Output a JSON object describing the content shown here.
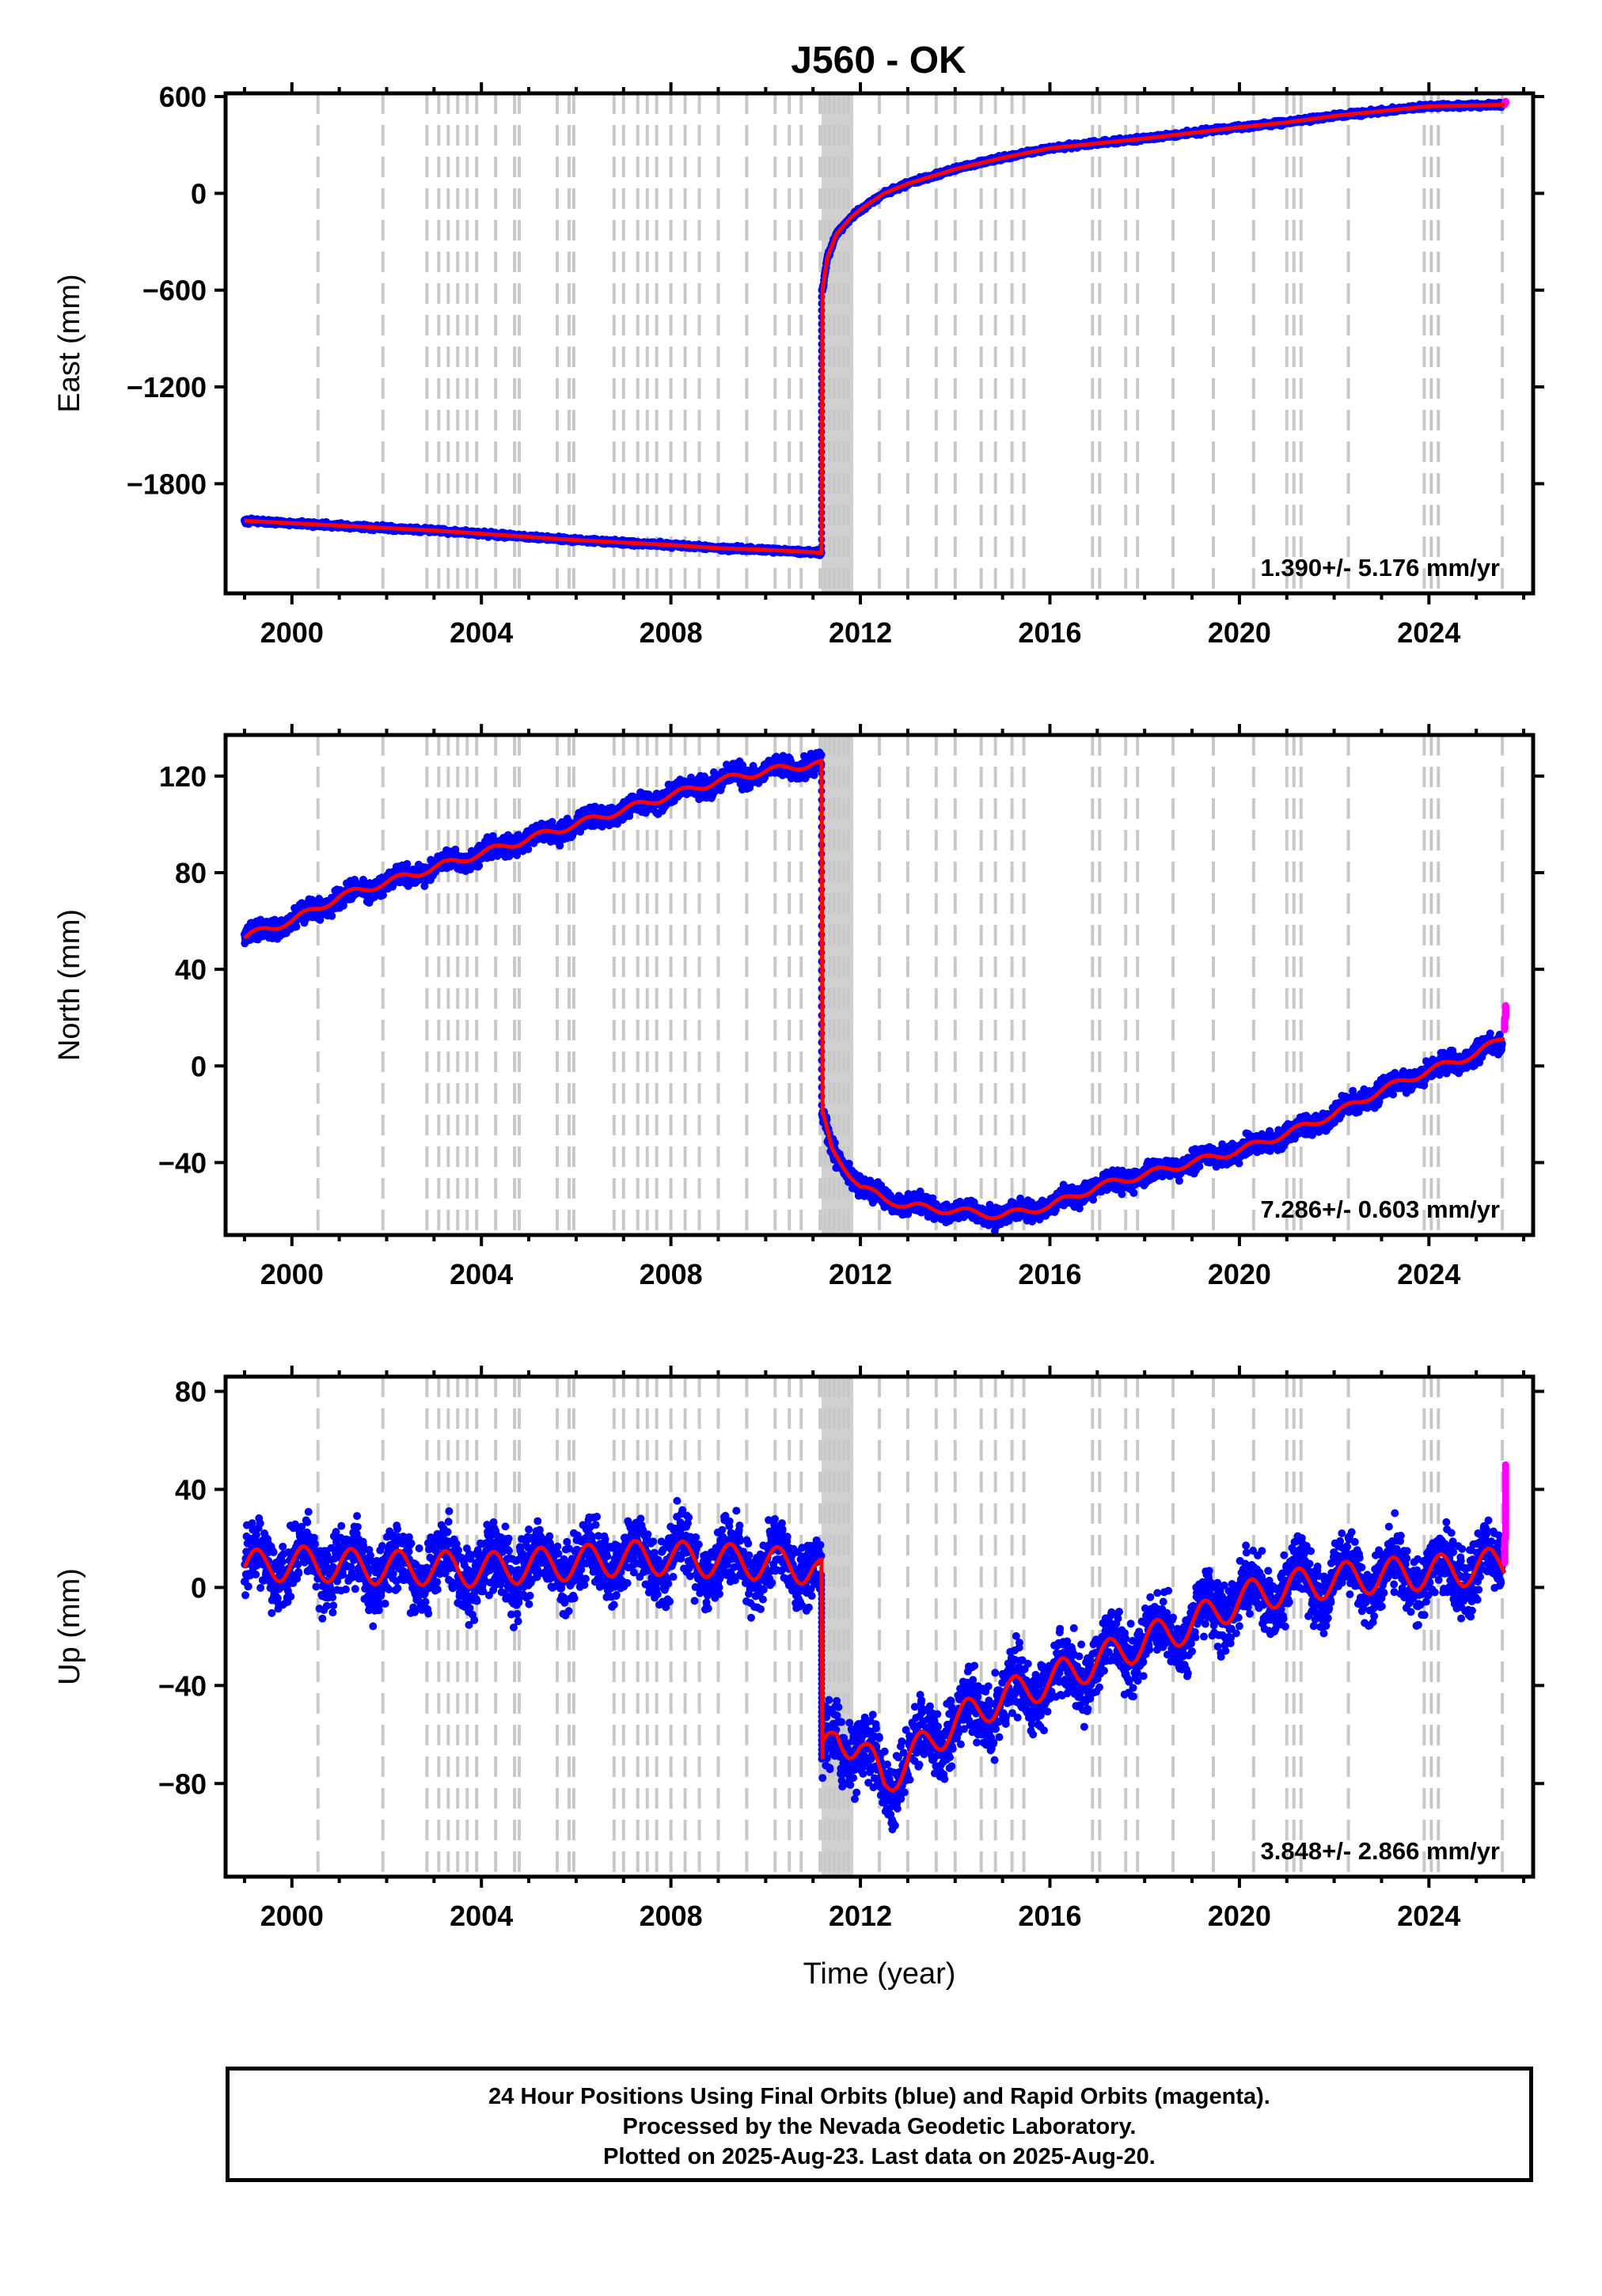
{
  "chart_data": [
    {
      "type": "scatter",
      "title": "J560 - OK",
      "ylabel": "East (mm)",
      "xlabel": "",
      "xlim": [
        1998.6,
        2026.2
      ],
      "ylim": [
        -2480,
        620
      ],
      "yticks": [
        -1800,
        -1200,
        -600,
        0,
        600
      ],
      "ytick_labels": [
        "−1800",
        "−1200",
        "−600",
        "0",
        "600"
      ],
      "xticks": [
        2000,
        2004,
        2008,
        2012,
        2016,
        2020,
        2024
      ],
      "xtick_labels": [
        "2000",
        "2004",
        "2008",
        "2012",
        "2016",
        "2020",
        "2024"
      ],
      "rate_text": "1.390+/- 5.176 mm/yr",
      "series": [
        {
          "color": "#0000ff",
          "x": [
            1999.0,
            2000.0,
            2001.0,
            2002.0,
            2003.0,
            2004.0,
            2005.0,
            2006.0,
            2007.0,
            2008.0,
            2009.0,
            2010.0,
            2011.0,
            2011.18,
            2011.2,
            2011.3,
            2011.5,
            2011.8,
            2012.0,
            2012.5,
            2013.0,
            2014.0,
            2015.0,
            2016.0,
            2017.0,
            2018.0,
            2019.0,
            2020.0,
            2021.0,
            2022.0,
            2023.0,
            2024.0,
            2025.0,
            2025.55
          ],
          "y": [
            -2030,
            -2045,
            -2060,
            -2075,
            -2090,
            -2110,
            -2130,
            -2150,
            -2165,
            -2180,
            -2200,
            -2210,
            -2225,
            -2230,
            -600,
            -400,
            -250,
            -150,
            -100,
            0,
            60,
            150,
            220,
            280,
            310,
            340,
            375,
            410,
            440,
            480,
            510,
            540,
            545,
            550
          ]
        },
        {
          "color": "#ff00ff",
          "x": [
            2025.6,
            2025.62,
            2025.65
          ],
          "y": [
            550,
            560,
            570
          ]
        }
      ],
      "model": {
        "color": "#ff0000",
        "x": [
          1999.0,
          2000.0,
          2001.0,
          2002.0,
          2003.0,
          2004.0,
          2005.0,
          2006.0,
          2007.0,
          2008.0,
          2009.0,
          2010.0,
          2011.0,
          2011.18,
          2011.2,
          2011.3,
          2011.5,
          2011.8,
          2012.0,
          2012.5,
          2013.0,
          2014.0,
          2015.0,
          2016.0,
          2017.0,
          2018.0,
          2019.0,
          2020.0,
          2021.0,
          2022.0,
          2023.0,
          2024.0,
          2025.0,
          2025.6
        ],
        "y": [
          -2030,
          -2045,
          -2060,
          -2075,
          -2090,
          -2110,
          -2130,
          -2150,
          -2165,
          -2180,
          -2200,
          -2210,
          -2225,
          -2230,
          -600,
          -400,
          -250,
          -150,
          -100,
          0,
          60,
          150,
          220,
          280,
          310,
          340,
          375,
          410,
          440,
          480,
          510,
          540,
          545,
          550
        ]
      }
    },
    {
      "type": "scatter",
      "title": "",
      "ylabel": "North (mm)",
      "xlabel": "",
      "xlim": [
        1998.6,
        2026.2
      ],
      "ylim": [
        -70,
        137
      ],
      "yticks": [
        -40,
        0,
        40,
        80,
        120
      ],
      "ytick_labels": [
        "−40",
        "0",
        "40",
        "80",
        "120"
      ],
      "xticks": [
        2000,
        2004,
        2008,
        2012,
        2016,
        2020,
        2024
      ],
      "xtick_labels": [
        "2000",
        "2004",
        "2008",
        "2012",
        "2016",
        "2020",
        "2024"
      ],
      "rate_text": "7.286+/- 0.603 mm/yr",
      "series": [
        {
          "color": "#0000ff",
          "x": [
            1999.0,
            1999.5,
            2000.0,
            2000.5,
            2001.0,
            2002.0,
            2003.0,
            2004.0,
            2005.0,
            2006.0,
            2007.0,
            2008.0,
            2009.0,
            2010.0,
            2011.0,
            2011.18,
            2011.2,
            2011.4,
            2011.8,
            2012.0,
            2012.5,
            2013.0,
            2014.0,
            2015.0,
            2016.0,
            2017.0,
            2018.0,
            2019.0,
            2020.0,
            2021.0,
            2022.0,
            2023.0,
            2024.0,
            2025.0,
            2025.55
          ],
          "y": [
            53,
            57,
            60,
            65,
            70,
            76,
            82,
            88,
            94,
            100,
            106,
            112,
            118,
            122,
            125,
            125,
            -20,
            -35,
            -45,
            -50,
            -55,
            -58,
            -60,
            -62,
            -58,
            -50,
            -45,
            -40,
            -35,
            -28,
            -20,
            -10,
            -2,
            5,
            10
          ]
        },
        {
          "color": "#ff00ff",
          "x": [
            2025.6,
            2025.62,
            2025.65
          ],
          "y": [
            15,
            20,
            25
          ]
        }
      ],
      "model": {
        "color": "#ff0000",
        "x": [
          1999.0,
          1999.5,
          2000.0,
          2000.5,
          2001.0,
          2002.0,
          2003.0,
          2004.0,
          2005.0,
          2006.0,
          2007.0,
          2008.0,
          2009.0,
          2010.0,
          2011.0,
          2011.18,
          2011.2,
          2011.4,
          2011.8,
          2012.0,
          2012.5,
          2013.0,
          2014.0,
          2015.0,
          2016.0,
          2017.0,
          2018.0,
          2019.0,
          2020.0,
          2021.0,
          2022.0,
          2023.0,
          2024.0,
          2025.0,
          2025.6
        ],
        "y": [
          53,
          57,
          60,
          65,
          70,
          76,
          82,
          88,
          94,
          100,
          106,
          112,
          118,
          122,
          125,
          125,
          -20,
          -35,
          -45,
          -50,
          -55,
          -58,
          -60,
          -62,
          -58,
          -50,
          -45,
          -40,
          -35,
          -28,
          -20,
          -10,
          -2,
          5,
          12
        ]
      }
    },
    {
      "type": "scatter",
      "title": "",
      "ylabel": "Up (mm)",
      "xlabel": "Time (year)",
      "xlim": [
        1998.6,
        2026.2
      ],
      "ylim": [
        -118,
        86
      ],
      "yticks": [
        -80,
        -40,
        0,
        40,
        80
      ],
      "ytick_labels": [
        "−80",
        "−40",
        "0",
        "40",
        "80"
      ],
      "xticks": [
        2000,
        2004,
        2008,
        2012,
        2016,
        2020,
        2024
      ],
      "xtick_labels": [
        "2000",
        "2004",
        "2008",
        "2012",
        "2016",
        "2020",
        "2024"
      ],
      "rate_text": "3.848+/- 2.866 mm/yr",
      "series": [
        {
          "color": "#0000ff",
          "x": [
            1999.0,
            2000.0,
            2001.0,
            2002.0,
            2003.0,
            2004.0,
            2005.0,
            2006.0,
            2007.0,
            2008.0,
            2009.0,
            2010.0,
            2011.0,
            2011.18,
            2011.2,
            2011.5,
            2012.0,
            2012.5,
            2013.0,
            2014.0,
            2015.0,
            2016.0,
            2017.0,
            2018.0,
            2019.0,
            2020.0,
            2021.0,
            2022.0,
            2023.0,
            2024.0,
            2025.0,
            2025.55
          ],
          "y": [
            8,
            10,
            9,
            8,
            8,
            7,
            9,
            10,
            12,
            12,
            11,
            10,
            8,
            5,
            -70,
            -60,
            -65,
            -80,
            -70,
            -55,
            -45,
            -38,
            -30,
            -22,
            -15,
            -5,
            0,
            3,
            5,
            6,
            8,
            8
          ]
        },
        {
          "color": "#ff00ff",
          "x": [
            2025.6,
            2025.62,
            2025.65
          ],
          "y": [
            10,
            20,
            50
          ]
        }
      ],
      "model": {
        "color": "#ff0000",
        "x": [
          1999.0,
          2000.0,
          2001.0,
          2002.0,
          2003.0,
          2004.0,
          2005.0,
          2006.0,
          2007.0,
          2008.0,
          2009.0,
          2010.0,
          2011.0,
          2011.18,
          2011.2,
          2011.5,
          2012.0,
          2012.5,
          2013.0,
          2014.0,
          2015.0,
          2016.0,
          2017.0,
          2018.0,
          2019.0,
          2020.0,
          2021.0,
          2022.0,
          2023.0,
          2024.0,
          2025.0,
          2025.6
        ],
        "y": [
          8,
          10,
          9,
          8,
          8,
          7,
          9,
          10,
          12,
          12,
          11,
          10,
          8,
          5,
          -70,
          -60,
          -65,
          -80,
          -70,
          -55,
          -45,
          -38,
          -30,
          -22,
          -15,
          -5,
          0,
          3,
          5,
          6,
          8,
          10
        ]
      }
    }
  ],
  "event_lines_year": [
    2000.55,
    2001.92,
    2002.85,
    2003.1,
    2003.3,
    2003.5,
    2003.7,
    2003.9,
    2004.3,
    2004.7,
    2004.8,
    2005.6,
    2005.85,
    2005.95,
    2006.8,
    2007.0,
    2007.3,
    2007.5,
    2007.7,
    2008.0,
    2008.3,
    2008.6,
    2009.0,
    2009.6,
    2010.2,
    2010.5,
    2010.75,
    2011.15,
    2011.25,
    2011.35,
    2011.45,
    2011.55,
    2011.65,
    2011.75,
    2012.4,
    2013.0,
    2013.6,
    2014.0,
    2014.55,
    2014.85,
    2015.2,
    2015.45,
    2016.9,
    2017.05,
    2017.6,
    2017.85,
    2018.6,
    2019.45,
    2020.3,
    2021.0,
    2021.15,
    2021.3,
    2022.3,
    2023.9,
    2024.05,
    2024.2,
    2025.55
  ],
  "footer": {
    "line1": "24 Hour Positions Using Final Orbits (blue) and Rapid Orbits (magenta).",
    "line2": "Processed by the Nevada Geodetic Laboratory.",
    "line3": "Plotted on 2025-Aug-23. Last data on 2025-Aug-20."
  }
}
